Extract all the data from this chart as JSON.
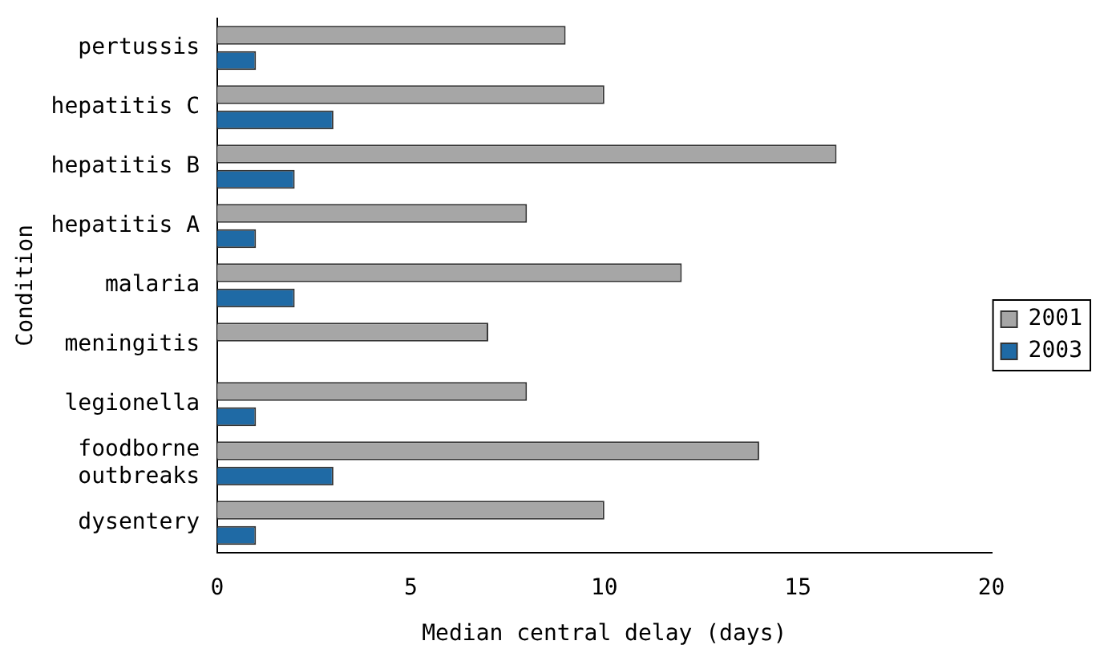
{
  "chart_data": {
    "type": "bar",
    "orientation": "horizontal",
    "xlabel": "Median central delay (days)",
    "ylabel": "Condition",
    "categories": [
      "pertussis",
      "hepatitis C",
      "hepatitis B",
      "hepatitis A",
      "malaria",
      "meningitis",
      "legionella",
      "foodborne outbreaks",
      "dysentery"
    ],
    "series": [
      {
        "name": "2001",
        "color": "#a6a6a6",
        "values": [
          9,
          10,
          16,
          8,
          12,
          7,
          8,
          14,
          10
        ]
      },
      {
        "name": "2003",
        "color": "#1f6aa5",
        "values": [
          1,
          3,
          2,
          1,
          2,
          null,
          1,
          3,
          1
        ]
      }
    ],
    "xlim": [
      0,
      20
    ],
    "xticks": [
      0,
      5,
      10,
      15,
      20
    ],
    "legend": "right"
  }
}
